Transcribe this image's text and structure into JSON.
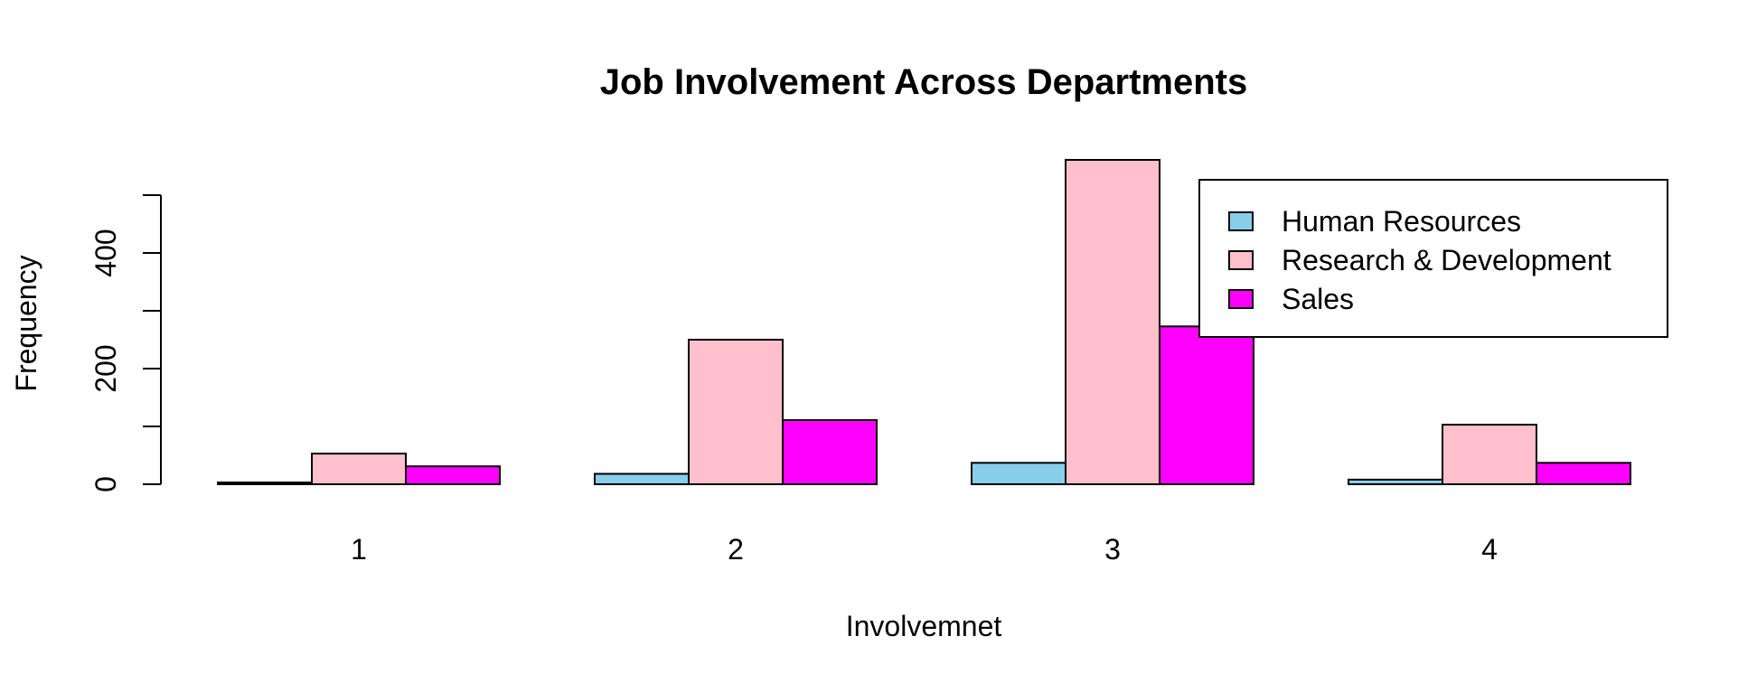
{
  "chart_data": {
    "type": "bar",
    "title": "Job Involvement Across Departments",
    "xlabel": "Involvemnet",
    "ylabel": "Frequency",
    "categories": [
      "1",
      "2",
      "3",
      "4"
    ],
    "series": [
      {
        "name": "Human Resources",
        "color": "#87CEEB",
        "values": [
          3,
          18,
          37,
          8
        ]
      },
      {
        "name": "Research & Development",
        "color": "#FFC0CB",
        "values": [
          53,
          250,
          561,
          103
        ]
      },
      {
        "name": "Sales",
        "color": "#FF00FF",
        "values": [
          31,
          111,
          273,
          37
        ]
      }
    ],
    "yticks": [
      0,
      200,
      400
    ],
    "ylim": [
      0,
      500
    ],
    "grid": false,
    "legend_position": "top-right"
  }
}
